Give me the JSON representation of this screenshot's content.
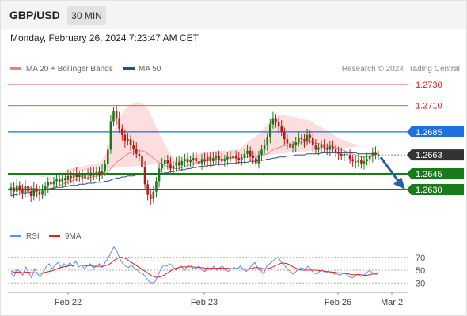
{
  "header": {
    "symbol": "GBP/USD",
    "timeframe": "30 MIN"
  },
  "timestamp": "Monday, February 26, 2024 7:23:47 AM CET",
  "legend": [
    {
      "label": "MA 20 + Bollinger Bands",
      "color": "#f08080"
    },
    {
      "label": "MA 50",
      "color": "#2d4d8c"
    }
  ],
  "attribution": "Research © 2024 Trading Central",
  "colors": {
    "resistance": "#e85a5a",
    "pivot": "#1f6fe0",
    "support": "#1a7a1a",
    "current": "#333333",
    "candle_up": "#1a7a1a",
    "candle_down": "#b21a1a",
    "band_fill": "#fbd3d3",
    "ma50": "#2d4d8c",
    "ma20": "#f08080",
    "rsi": "#5b8def",
    "rsi_ma": "#e02020",
    "arrow": "#2d5ea5"
  },
  "price_levels": [
    {
      "value": 1.273,
      "label": "1.2730",
      "type": "resistance"
    },
    {
      "value": 1.271,
      "label": "1.2710",
      "type": "resistance"
    },
    {
      "value": 1.2685,
      "label": "1.2685",
      "type": "pivot"
    },
    {
      "value": 1.2663,
      "label": "1.2663",
      "type": "current"
    },
    {
      "value": 1.2645,
      "label": "1.2645",
      "type": "support"
    },
    {
      "value": 1.263,
      "label": "1.2630",
      "type": "support"
    }
  ],
  "rsi_legend": [
    {
      "label": "RSI",
      "color": "#5b8def"
    },
    {
      "label": "9MA",
      "color": "#e02020"
    }
  ],
  "rsi_levels": [
    {
      "value": 70,
      "label": "70"
    },
    {
      "value": 50,
      "label": "50"
    },
    {
      "value": 30,
      "label": "30"
    }
  ],
  "x_axis": [
    "Feb 22",
    "Feb 23",
    "Feb 26",
    "Mar 2"
  ],
  "chart_data": {
    "type": "candlestick",
    "title": "GBP/USD",
    "timeframe": "30 MIN",
    "ylim": [
      1.2618,
      1.2735
    ],
    "close": [
      1.2632,
      1.2628,
      1.2634,
      1.263,
      1.2627,
      1.2633,
      1.2628,
      1.2624,
      1.2631,
      1.2628,
      1.2625,
      1.2629,
      1.2633,
      1.2637,
      1.2635,
      1.2638,
      1.264,
      1.2637,
      1.2641,
      1.2639,
      1.2643,
      1.2641,
      1.2645,
      1.2642,
      1.2644,
      1.2641,
      1.2644,
      1.2646,
      1.2643,
      1.2645,
      1.2647,
      1.2644,
      1.2648,
      1.2654,
      1.2668,
      1.2695,
      1.2705,
      1.2698,
      1.2688,
      1.2682,
      1.2676,
      1.2678,
      1.2672,
      1.2669,
      1.2664,
      1.2662,
      1.2651,
      1.2635,
      1.2625,
      1.2621,
      1.2628,
      1.2638,
      1.265,
      1.2654,
      1.2658,
      1.2655,
      1.265,
      1.2653,
      1.2656,
      1.2653,
      1.2657,
      1.2659,
      1.2656,
      1.2658,
      1.266,
      1.2657,
      1.2655,
      1.2659,
      1.2657,
      1.2661,
      1.2657,
      1.266,
      1.2662,
      1.2659,
      1.2657,
      1.2659,
      1.2661,
      1.266,
      1.2662,
      1.266,
      1.2658,
      1.266,
      1.2664,
      1.2667,
      1.2662,
      1.266,
      1.2655,
      1.2663,
      1.2668,
      1.2672,
      1.268,
      1.2692,
      1.2698,
      1.2694,
      1.269,
      1.2685,
      1.2678,
      1.2674,
      1.267,
      1.2672,
      1.2675,
      1.2679,
      1.2678,
      1.2676,
      1.2682,
      1.2679,
      1.2672,
      1.2668,
      1.267,
      1.2672,
      1.267,
      1.2668,
      1.2671,
      1.2669,
      1.2666,
      1.2664,
      1.2662,
      1.2664,
      1.2663,
      1.2659,
      1.2657,
      1.2656,
      1.2658,
      1.2655,
      1.2657,
      1.2659,
      1.2662,
      1.2665,
      1.2663,
      1.2663
    ],
    "ma20": [
      1.263,
      1.263,
      1.2631,
      1.2631,
      1.2631,
      1.2632,
      1.2632,
      1.2631,
      1.2631,
      1.2631,
      1.263,
      1.263,
      1.263,
      1.2631,
      1.2631,
      1.2632,
      1.2633,
      1.2634,
      1.2635,
      1.2636,
      1.2637,
      1.2638,
      1.2639,
      1.2639,
      1.264,
      1.264,
      1.2641,
      1.2641,
      1.2642,
      1.2642,
      1.2643,
      1.2643,
      1.2644,
      1.2645,
      1.2647,
      1.265,
      1.2653,
      1.2656,
      1.2658,
      1.266,
      1.2662,
      1.2664,
      1.2665,
      1.2666,
      1.2667,
      1.2667,
      1.2667,
      1.2666,
      1.2664,
      1.2662,
      1.266,
      1.2658,
      1.2656,
      1.2654,
      1.2653,
      1.2652,
      1.2651,
      1.265,
      1.265,
      1.265,
      1.2651,
      1.2652,
      1.2653,
      1.2654,
      1.2655,
      1.2656,
      1.2656,
      1.2657,
      1.2657,
      1.2658,
      1.2658,
      1.2659,
      1.2659,
      1.2659,
      1.2659,
      1.2659,
      1.2659,
      1.266,
      1.266,
      1.266,
      1.266,
      1.266,
      1.2661,
      1.2661,
      1.2661,
      1.2661,
      1.2661,
      1.2661,
      1.2662,
      1.2663,
      1.2664,
      1.2666,
      1.2668,
      1.2669,
      1.267,
      1.2671,
      1.2672,
      1.2672,
      1.2673,
      1.2673,
      1.2674,
      1.2674,
      1.2675,
      1.2675,
      1.2675,
      1.2676,
      1.2675,
      1.2674,
      1.2674,
      1.2673,
      1.2673,
      1.2672,
      1.2672,
      1.2671,
      1.267,
      1.2669,
      1.2668,
      1.2667,
      1.2666,
      1.2665,
      1.2664,
      1.2663,
      1.2662,
      1.2661,
      1.2661,
      1.2661,
      1.2661,
      1.2662,
      1.2662,
      1.2662
    ],
    "ma50": [
      1.2624,
      1.2625,
      1.2625,
      1.2626,
      1.2626,
      1.2627,
      1.2627,
      1.2628,
      1.2628,
      1.2629,
      1.2629,
      1.263,
      1.263,
      1.263,
      1.2631,
      1.2631,
      1.2632,
      1.2632,
      1.2632,
      1.2633,
      1.2633,
      1.2634,
      1.2634,
      1.2634,
      1.2635,
      1.2635,
      1.2635,
      1.2636,
      1.2636,
      1.2636,
      1.2637,
      1.2637,
      1.2637,
      1.2638,
      1.2638,
      1.2639,
      1.264,
      1.2641,
      1.2641,
      1.2642,
      1.2642,
      1.2643,
      1.2643,
      1.2643,
      1.2644,
      1.2644,
      1.2644,
      1.2644,
      1.2644,
      1.2644,
      1.2644,
      1.2645,
      1.2645,
      1.2645,
      1.2646,
      1.2646,
      1.2647,
      1.2647,
      1.2648,
      1.2648,
      1.2649,
      1.2649,
      1.265,
      1.265,
      1.2651,
      1.2651,
      1.2652,
      1.2652,
      1.2652,
      1.2653,
      1.2653,
      1.2653,
      1.2654,
      1.2654,
      1.2654,
      1.2654,
      1.2655,
      1.2655,
      1.2655,
      1.2655,
      1.2656,
      1.2656,
      1.2656,
      1.2656,
      1.2657,
      1.2657,
      1.2657,
      1.2658,
      1.2658,
      1.2658,
      1.2659,
      1.2659,
      1.266,
      1.266,
      1.2661,
      1.2661,
      1.2661,
      1.2662,
      1.2662,
      1.2662,
      1.2663,
      1.2663,
      1.2663,
      1.2663,
      1.2664,
      1.2664,
      1.2664,
      1.2664,
      1.2664,
      1.2665,
      1.2665,
      1.2665,
      1.2665,
      1.2665,
      1.2665,
      1.2665,
      1.2665,
      1.2665,
      1.2665,
      1.2665,
      1.2665,
      1.2665,
      1.2664,
      1.2664,
      1.2664,
      1.2664,
      1.2664,
      1.2664,
      1.2664,
      1.2664
    ],
    "band_width": [
      0.0012,
      0.0012,
      0.0012,
      0.0012,
      0.0012,
      0.0012,
      0.0012,
      0.0012,
      0.0012,
      0.0012,
      0.0012,
      0.0012,
      0.0012,
      0.0012,
      0.0012,
      0.0012,
      0.0012,
      0.0012,
      0.0012,
      0.0012,
      0.0012,
      0.0012,
      0.0012,
      0.0012,
      0.0012,
      0.0012,
      0.0012,
      0.0012,
      0.0012,
      0.0012,
      0.0012,
      0.0012,
      0.0014,
      0.0018,
      0.0022,
      0.0028,
      0.0032,
      0.0036,
      0.004,
      0.0042,
      0.0044,
      0.0046,
      0.0046,
      0.0046,
      0.0046,
      0.0046,
      0.0045,
      0.0044,
      0.0043,
      0.004,
      0.0036,
      0.0032,
      0.0028,
      0.0024,
      0.002,
      0.0016,
      0.0013,
      0.001,
      0.0009,
      0.0008,
      0.0008,
      0.0008,
      0.0008,
      0.0008,
      0.0008,
      0.0008,
      0.0008,
      0.0008,
      0.0008,
      0.0008,
      0.0008,
      0.0008,
      0.0008,
      0.0008,
      0.0008,
      0.0008,
      0.0008,
      0.0008,
      0.0008,
      0.0008,
      0.0009,
      0.001,
      0.0012,
      0.0014,
      0.0016,
      0.0018,
      0.002,
      0.0022,
      0.0024,
      0.0026,
      0.0028,
      0.0029,
      0.003,
      0.0031,
      0.0031,
      0.003,
      0.0029,
      0.0028,
      0.0027,
      0.0026,
      0.0025,
      0.0024,
      0.0023,
      0.0022,
      0.0021,
      0.002,
      0.0019,
      0.0018,
      0.0017,
      0.0016,
      0.0015,
      0.0014,
      0.0013,
      0.0012,
      0.0011,
      0.001,
      0.001,
      0.001,
      0.001,
      0.001,
      0.001,
      0.001,
      0.001,
      0.001,
      0.001,
      0.001,
      0.001,
      0.001
    ],
    "rsi": [
      45,
      40,
      52,
      48,
      42,
      55,
      46,
      38,
      52,
      44,
      40,
      48,
      56,
      60,
      52,
      58,
      62,
      54,
      60,
      55,
      62,
      56,
      64,
      55,
      58,
      52,
      57,
      60,
      53,
      56,
      60,
      54,
      62,
      68,
      78,
      86,
      80,
      68,
      60,
      56,
      54,
      58,
      52,
      50,
      46,
      44,
      38,
      32,
      30,
      32,
      42,
      52,
      58,
      56,
      60,
      56,
      50,
      54,
      56,
      50,
      56,
      58,
      52,
      54,
      56,
      50,
      48,
      54,
      50,
      56,
      50,
      54,
      56,
      50,
      48,
      52,
      54,
      52,
      56,
      52,
      48,
      52,
      58,
      62,
      52,
      50,
      44,
      56,
      60,
      64,
      68,
      70,
      62,
      58,
      52,
      48,
      44,
      48,
      52,
      54,
      50,
      56,
      52,
      46,
      44,
      48,
      50,
      46,
      48,
      46,
      44,
      44,
      42,
      46,
      44,
      40,
      38,
      40,
      44,
      40,
      42,
      46,
      50,
      46,
      44,
      45
    ],
    "rsi_ma": [
      48,
      47,
      47,
      47,
      46,
      47,
      47,
      46,
      46,
      46,
      45,
      46,
      47,
      48,
      49,
      51,
      53,
      54,
      55,
      56,
      57,
      57,
      58,
      58,
      58,
      57,
      57,
      57,
      56,
      56,
      56,
      56,
      57,
      58,
      61,
      65,
      68,
      70,
      70,
      68,
      65,
      62,
      59,
      56,
      53,
      50,
      47,
      44,
      41,
      39,
      39,
      40,
      42,
      45,
      48,
      51,
      53,
      54,
      55,
      55,
      55,
      55,
      55,
      54,
      54,
      54,
      53,
      53,
      53,
      53,
      53,
      53,
      53,
      53,
      53,
      52,
      52,
      52,
      52,
      52,
      52,
      52,
      53,
      54,
      54,
      53,
      52,
      52,
      53,
      55,
      57,
      59,
      61,
      61,
      60,
      58,
      55,
      53,
      51,
      50,
      50,
      50,
      50,
      50,
      50,
      49,
      49,
      48,
      48,
      47,
      47,
      46,
      46,
      45,
      45,
      44,
      43,
      43,
      43,
      43,
      42,
      42,
      43,
      44,
      44,
      44
    ]
  }
}
